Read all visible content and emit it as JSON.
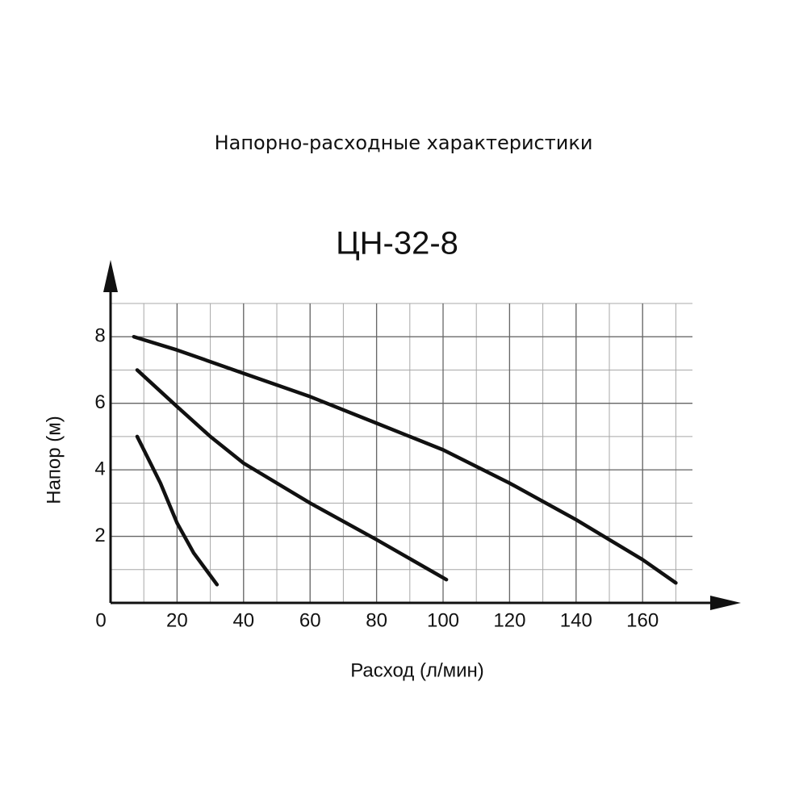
{
  "chart_data": {
    "type": "line",
    "subtitle": "Напорно-расходные характеристики",
    "title": "ЦН-32-8",
    "x_label": "Расход (л/мин)",
    "y_label": "Напор (м)",
    "xlim": [
      0,
      175
    ],
    "ylim": [
      0,
      9
    ],
    "xticks": [
      0,
      20,
      40,
      60,
      80,
      100,
      120,
      140,
      160
    ],
    "yticks": [
      2,
      4,
      6,
      8
    ],
    "grid": true,
    "series": [
      {
        "color": "#111111",
        "x": [
          7,
          20,
          40,
          60,
          80,
          100,
          120,
          140,
          160,
          170
        ],
        "values": [
          8,
          7.6,
          6.9,
          6.2,
          5.4,
          4.6,
          3.6,
          2.5,
          1.3,
          0.6
        ]
      },
      {
        "color": "#111111",
        "x": [
          8,
          20,
          30,
          40,
          60,
          80,
          101
        ],
        "values": [
          7,
          5.9,
          5.0,
          4.2,
          3.0,
          1.9,
          0.7
        ]
      },
      {
        "color": "#111111",
        "x": [
          8,
          15,
          20,
          25,
          32
        ],
        "values": [
          5,
          3.6,
          2.4,
          1.5,
          0.55
        ]
      }
    ]
  }
}
